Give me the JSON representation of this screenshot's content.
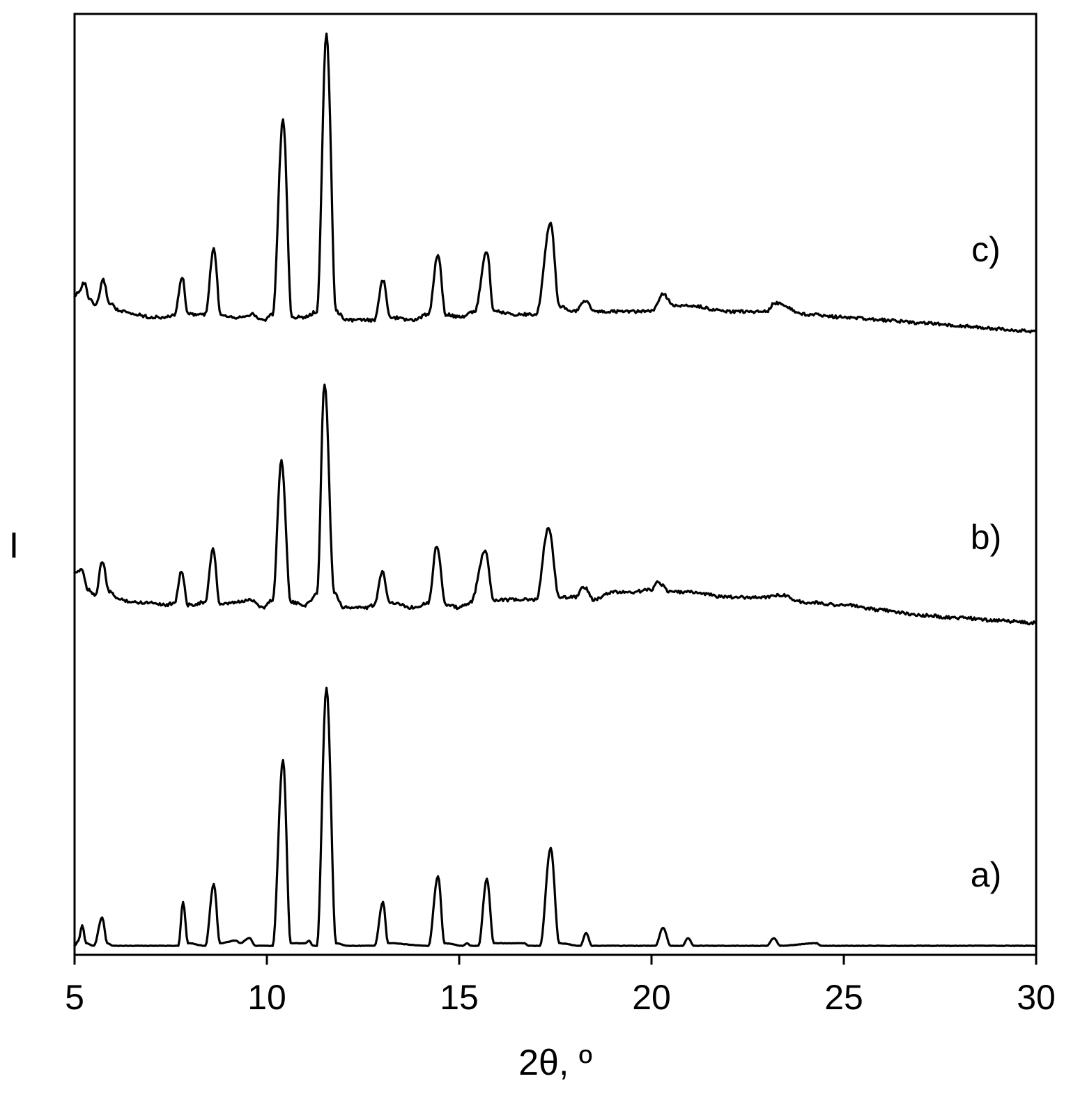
{
  "chart_data": {
    "type": "line",
    "xlabel": "2θ, º",
    "ylabel": "I",
    "xlim": [
      5,
      30
    ],
    "xticks": [
      "5",
      "10",
      "15",
      "20",
      "25",
      "30"
    ],
    "y_ticks_shown": false,
    "grid": false,
    "legend": "none",
    "line_color": "#000000",
    "series": [
      {
        "name": "a)",
        "baseline": 0,
        "points": [
          [
            5,
            0
          ],
          [
            5.1,
            0.02
          ],
          [
            5.2,
            0.08
          ],
          [
            5.3,
            0.01
          ],
          [
            5.5,
            0
          ],
          [
            5.72,
            0.11
          ],
          [
            5.85,
            0.01
          ],
          [
            6,
            0
          ],
          [
            7.7,
            0
          ],
          [
            7.82,
            0.17
          ],
          [
            7.95,
            0.01
          ],
          [
            8.4,
            0
          ],
          [
            8.62,
            0.24
          ],
          [
            8.78,
            0.01
          ],
          [
            9.2,
            0.02
          ],
          [
            9.3,
            0.01
          ],
          [
            9.55,
            0.03
          ],
          [
            9.7,
            0
          ],
          [
            10.15,
            0
          ],
          [
            10.42,
            0.72
          ],
          [
            10.62,
            0.01
          ],
          [
            11,
            0.01
          ],
          [
            11.1,
            0.02
          ],
          [
            11.2,
            0
          ],
          [
            11.3,
            0
          ],
          [
            11.55,
            1.0
          ],
          [
            11.8,
            0.01
          ],
          [
            12.1,
            0
          ],
          [
            12.8,
            0
          ],
          [
            13.02,
            0.17
          ],
          [
            13.15,
            0.01
          ],
          [
            14.2,
            0
          ],
          [
            14.45,
            0.27
          ],
          [
            14.62,
            0.01
          ],
          [
            15.1,
            0
          ],
          [
            15.2,
            0.01
          ],
          [
            15.3,
            0
          ],
          [
            15.5,
            0
          ],
          [
            15.72,
            0.26
          ],
          [
            15.9,
            0.01
          ],
          [
            16.7,
            0.01
          ],
          [
            16.8,
            0
          ],
          [
            17.1,
            0
          ],
          [
            17.38,
            0.38
          ],
          [
            17.6,
            0.01
          ],
          [
            18.15,
            0
          ],
          [
            18.3,
            0.05
          ],
          [
            18.45,
            0
          ],
          [
            20.1,
            0
          ],
          [
            20.3,
            0.07
          ],
          [
            20.5,
            0
          ],
          [
            20.8,
            0
          ],
          [
            20.95,
            0.03
          ],
          [
            21.1,
            0
          ],
          [
            23.0,
            0
          ],
          [
            23.18,
            0.03
          ],
          [
            23.35,
            0
          ],
          [
            24.3,
            0.01
          ],
          [
            24.4,
            0
          ],
          [
            30,
            0
          ]
        ]
      },
      {
        "name": "b)",
        "baseline": 0,
        "points": [
          [
            5,
            0.12
          ],
          [
            5.18,
            0.14
          ],
          [
            5.35,
            0.06
          ],
          [
            5.55,
            0.04
          ],
          [
            5.72,
            0.17
          ],
          [
            5.9,
            0.05
          ],
          [
            6.2,
            0.02
          ],
          [
            6.6,
            0.01
          ],
          [
            7.0,
            0.01
          ],
          [
            7.4,
            0.0
          ],
          [
            7.6,
            0.01
          ],
          [
            7.78,
            0.13
          ],
          [
            7.95,
            0.0
          ],
          [
            8.4,
            0.01
          ],
          [
            8.6,
            0.22
          ],
          [
            8.78,
            0.0
          ],
          [
            9.2,
            0.01
          ],
          [
            9.6,
            0.02
          ],
          [
            9.9,
            -0.01
          ],
          [
            10.15,
            0.02
          ],
          [
            10.38,
            0.56
          ],
          [
            10.62,
            0.01
          ],
          [
            11.0,
            0.0
          ],
          [
            11.3,
            0.04
          ],
          [
            11.5,
            0.86
          ],
          [
            11.75,
            0.05
          ],
          [
            12.0,
            -0.01
          ],
          [
            12.6,
            -0.01
          ],
          [
            12.8,
            0.0
          ],
          [
            13.0,
            0.13
          ],
          [
            13.2,
            0.01
          ],
          [
            13.8,
            -0.01
          ],
          [
            14.2,
            0.01
          ],
          [
            14.42,
            0.23
          ],
          [
            14.65,
            0.0
          ],
          [
            15.0,
            -0.01
          ],
          [
            15.3,
            0.01
          ],
          [
            15.68,
            0.21
          ],
          [
            15.9,
            0.02
          ],
          [
            16.5,
            0.02
          ],
          [
            17.0,
            0.02
          ],
          [
            17.32,
            0.3
          ],
          [
            17.6,
            0.03
          ],
          [
            18.0,
            0.03
          ],
          [
            18.25,
            0.07
          ],
          [
            18.5,
            0.02
          ],
          [
            19.0,
            0.05
          ],
          [
            19.5,
            0.05
          ],
          [
            20.0,
            0.06
          ],
          [
            20.15,
            0.09
          ],
          [
            20.5,
            0.05
          ],
          [
            21.0,
            0.05
          ],
          [
            22.0,
            0.03
          ],
          [
            23.0,
            0.03
          ],
          [
            23.3,
            0.04
          ],
          [
            24.0,
            0.01
          ],
          [
            25.0,
            0.0
          ],
          [
            26.0,
            -0.02
          ],
          [
            27.0,
            -0.04
          ],
          [
            28.0,
            -0.05
          ],
          [
            29.0,
            -0.06
          ],
          [
            30.0,
            -0.07
          ]
        ]
      },
      {
        "name": "c)",
        "baseline": 0,
        "points": [
          [
            5,
            0.05
          ],
          [
            5.1,
            0.07
          ],
          [
            5.25,
            0.1
          ],
          [
            5.4,
            0.04
          ],
          [
            5.55,
            0.02
          ],
          [
            5.75,
            0.11
          ],
          [
            5.9,
            0.03
          ],
          [
            6.2,
            0.0
          ],
          [
            6.6,
            -0.01
          ],
          [
            7.0,
            -0.02
          ],
          [
            7.4,
            -0.02
          ],
          [
            7.6,
            -0.01
          ],
          [
            7.8,
            0.12
          ],
          [
            7.95,
            -0.01
          ],
          [
            8.4,
            -0.01
          ],
          [
            8.62,
            0.22
          ],
          [
            8.8,
            -0.01
          ],
          [
            9.2,
            -0.02
          ],
          [
            9.6,
            -0.01
          ],
          [
            9.9,
            -0.03
          ],
          [
            10.15,
            -0.01
          ],
          [
            10.42,
            0.67
          ],
          [
            10.65,
            -0.02
          ],
          [
            11.0,
            -0.02
          ],
          [
            11.3,
            0.0
          ],
          [
            11.55,
            0.97
          ],
          [
            11.8,
            0.0
          ],
          [
            12.1,
            -0.03
          ],
          [
            12.8,
            -0.03
          ],
          [
            13.02,
            0.11
          ],
          [
            13.2,
            -0.02
          ],
          [
            13.8,
            -0.03
          ],
          [
            14.2,
            -0.01
          ],
          [
            14.45,
            0.2
          ],
          [
            14.65,
            -0.01
          ],
          [
            15.0,
            -0.02
          ],
          [
            15.4,
            0.0
          ],
          [
            15.72,
            0.21
          ],
          [
            15.9,
            0.0
          ],
          [
            16.5,
            -0.01
          ],
          [
            17.0,
            -0.01
          ],
          [
            17.38,
            0.31
          ],
          [
            17.6,
            0.02
          ],
          [
            18.0,
            0.0
          ],
          [
            18.3,
            0.04
          ],
          [
            18.5,
            0.0
          ],
          [
            19.0,
            0.0
          ],
          [
            19.5,
            0.0
          ],
          [
            20.0,
            0.0
          ],
          [
            20.3,
            0.06
          ],
          [
            20.6,
            0.02
          ],
          [
            21.0,
            0.02
          ],
          [
            22.0,
            0.0
          ],
          [
            23.0,
            0.0
          ],
          [
            23.2,
            0.03
          ],
          [
            24.0,
            -0.01
          ],
          [
            25.0,
            -0.02
          ],
          [
            26.0,
            -0.03
          ],
          [
            27.0,
            -0.04
          ],
          [
            28.0,
            -0.05
          ],
          [
            29.0,
            -0.06
          ],
          [
            30.0,
            -0.07
          ]
        ]
      }
    ]
  }
}
